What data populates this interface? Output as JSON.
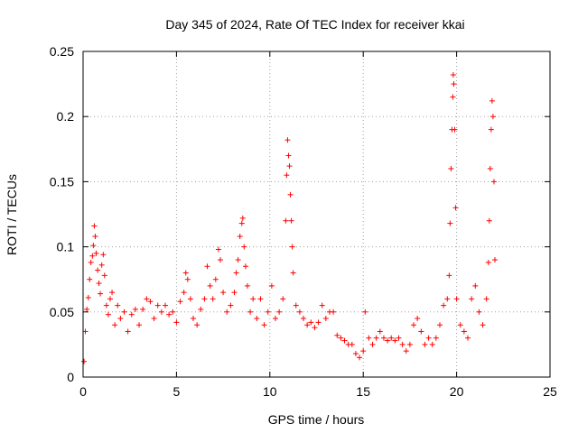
{
  "chart_data": {
    "type": "scatter",
    "title": "Day 345 of 2024, Rate Of TEC Index for receiver kkai",
    "xlabel": "GPS time / hours",
    "ylabel": "ROTI / TECUs",
    "xlim": [
      0,
      25
    ],
    "ylim": [
      0,
      0.25
    ],
    "grid": true,
    "marker": "plus",
    "colors": {
      "points": "#ff0000",
      "grid": "#a0a0a0",
      "axes": "#000000"
    },
    "x_ticks": [
      {
        "value": 0,
        "label": "0"
      },
      {
        "value": 5,
        "label": "5"
      },
      {
        "value": 10,
        "label": "10"
      },
      {
        "value": 15,
        "label": "15"
      },
      {
        "value": 20,
        "label": "20"
      },
      {
        "value": 25,
        "label": "25"
      }
    ],
    "y_ticks": [
      {
        "value": 0,
        "label": "0"
      },
      {
        "value": 0.05,
        "label": "0.05"
      },
      {
        "value": 0.1,
        "label": "0.1"
      },
      {
        "value": 0.15,
        "label": "0.15"
      },
      {
        "value": 0.2,
        "label": "0.2"
      },
      {
        "value": 0.25,
        "label": "0.25"
      }
    ],
    "series": [
      {
        "color": "#ff0000",
        "points": [
          [
            0.05,
            0.012
          ],
          [
            0.12,
            0.035
          ],
          [
            0.2,
            0.052
          ],
          [
            0.28,
            0.061
          ],
          [
            0.35,
            0.075
          ],
          [
            0.42,
            0.088
          ],
          [
            0.5,
            0.093
          ],
          [
            0.55,
            0.101
          ],
          [
            0.6,
            0.116
          ],
          [
            0.65,
            0.108
          ],
          [
            0.7,
            0.095
          ],
          [
            0.78,
            0.082
          ],
          [
            0.85,
            0.072
          ],
          [
            0.92,
            0.064
          ],
          [
            1.0,
            0.086
          ],
          [
            1.08,
            0.094
          ],
          [
            1.15,
            0.078
          ],
          [
            1.25,
            0.055
          ],
          [
            1.35,
            0.048
          ],
          [
            1.45,
            0.06
          ],
          [
            1.55,
            0.065
          ],
          [
            1.7,
            0.04
          ],
          [
            1.85,
            0.055
          ],
          [
            2.0,
            0.045
          ],
          [
            2.2,
            0.05
          ],
          [
            2.4,
            0.035
          ],
          [
            2.6,
            0.048
          ],
          [
            2.8,
            0.052
          ],
          [
            3.0,
            0.04
          ],
          [
            3.2,
            0.052
          ],
          [
            3.4,
            0.06
          ],
          [
            3.6,
            0.058
          ],
          [
            3.8,
            0.045
          ],
          [
            4.0,
            0.055
          ],
          [
            4.2,
            0.05
          ],
          [
            4.4,
            0.055
          ],
          [
            4.6,
            0.048
          ],
          [
            4.8,
            0.05
          ],
          [
            5.0,
            0.042
          ],
          [
            5.2,
            0.058
          ],
          [
            5.4,
            0.065
          ],
          [
            5.5,
            0.08
          ],
          [
            5.6,
            0.075
          ],
          [
            5.75,
            0.06
          ],
          [
            5.9,
            0.045
          ],
          [
            6.1,
            0.04
          ],
          [
            6.3,
            0.052
          ],
          [
            6.5,
            0.06
          ],
          [
            6.65,
            0.085
          ],
          [
            6.8,
            0.07
          ],
          [
            6.95,
            0.06
          ],
          [
            7.1,
            0.075
          ],
          [
            7.25,
            0.098
          ],
          [
            7.35,
            0.09
          ],
          [
            7.5,
            0.065
          ],
          [
            7.7,
            0.05
          ],
          [
            7.9,
            0.055
          ],
          [
            8.1,
            0.065
          ],
          [
            8.2,
            0.08
          ],
          [
            8.3,
            0.09
          ],
          [
            8.4,
            0.108
          ],
          [
            8.5,
            0.118
          ],
          [
            8.55,
            0.122
          ],
          [
            8.62,
            0.1
          ],
          [
            8.7,
            0.085
          ],
          [
            8.8,
            0.07
          ],
          [
            8.95,
            0.05
          ],
          [
            9.1,
            0.06
          ],
          [
            9.3,
            0.045
          ],
          [
            9.5,
            0.06
          ],
          [
            9.7,
            0.04
          ],
          [
            9.9,
            0.05
          ],
          [
            10.1,
            0.07
          ],
          [
            10.3,
            0.045
          ],
          [
            10.5,
            0.05
          ],
          [
            10.7,
            0.06
          ],
          [
            10.85,
            0.12
          ],
          [
            10.9,
            0.155
          ],
          [
            10.95,
            0.182
          ],
          [
            11.0,
            0.17
          ],
          [
            11.05,
            0.162
          ],
          [
            11.1,
            0.14
          ],
          [
            11.15,
            0.12
          ],
          [
            11.2,
            0.1
          ],
          [
            11.25,
            0.08
          ],
          [
            11.4,
            0.055
          ],
          [
            11.6,
            0.05
          ],
          [
            11.8,
            0.045
          ],
          [
            12.0,
            0.04
          ],
          [
            12.2,
            0.042
          ],
          [
            12.4,
            0.038
          ],
          [
            12.6,
            0.042
          ],
          [
            12.8,
            0.055
          ],
          [
            13.0,
            0.045
          ],
          [
            13.2,
            0.05
          ],
          [
            13.4,
            0.05
          ],
          [
            13.6,
            0.032
          ],
          [
            13.8,
            0.03
          ],
          [
            14.0,
            0.028
          ],
          [
            14.2,
            0.025
          ],
          [
            14.4,
            0.025
          ],
          [
            14.6,
            0.018
          ],
          [
            14.8,
            0.015
          ],
          [
            15.0,
            0.02
          ],
          [
            15.1,
            0.05
          ],
          [
            15.3,
            0.03
          ],
          [
            15.5,
            0.025
          ],
          [
            15.7,
            0.03
          ],
          [
            15.9,
            0.035
          ],
          [
            16.1,
            0.03
          ],
          [
            16.3,
            0.028
          ],
          [
            16.5,
            0.03
          ],
          [
            16.7,
            0.028
          ],
          [
            16.9,
            0.03
          ],
          [
            17.1,
            0.025
          ],
          [
            17.3,
            0.02
          ],
          [
            17.5,
            0.025
          ],
          [
            17.7,
            0.04
          ],
          [
            17.9,
            0.045
          ],
          [
            18.1,
            0.035
          ],
          [
            18.3,
            0.025
          ],
          [
            18.5,
            0.03
          ],
          [
            18.7,
            0.025
          ],
          [
            18.9,
            0.03
          ],
          [
            19.1,
            0.04
          ],
          [
            19.3,
            0.055
          ],
          [
            19.5,
            0.06
          ],
          [
            19.6,
            0.078
          ],
          [
            19.65,
            0.118
          ],
          [
            19.7,
            0.16
          ],
          [
            19.75,
            0.19
          ],
          [
            19.8,
            0.215
          ],
          [
            19.82,
            0.232
          ],
          [
            19.85,
            0.225
          ],
          [
            19.9,
            0.19
          ],
          [
            19.95,
            0.13
          ],
          [
            20.0,
            0.06
          ],
          [
            20.2,
            0.04
          ],
          [
            20.4,
            0.035
          ],
          [
            20.6,
            0.03
          ],
          [
            20.8,
            0.06
          ],
          [
            21.0,
            0.07
          ],
          [
            21.2,
            0.05
          ],
          [
            21.4,
            0.04
          ],
          [
            21.6,
            0.06
          ],
          [
            21.7,
            0.088
          ],
          [
            21.75,
            0.12
          ],
          [
            21.8,
            0.16
          ],
          [
            21.85,
            0.19
          ],
          [
            21.9,
            0.212
          ],
          [
            21.95,
            0.2
          ],
          [
            22.0,
            0.15
          ],
          [
            22.05,
            0.09
          ]
        ]
      }
    ]
  }
}
